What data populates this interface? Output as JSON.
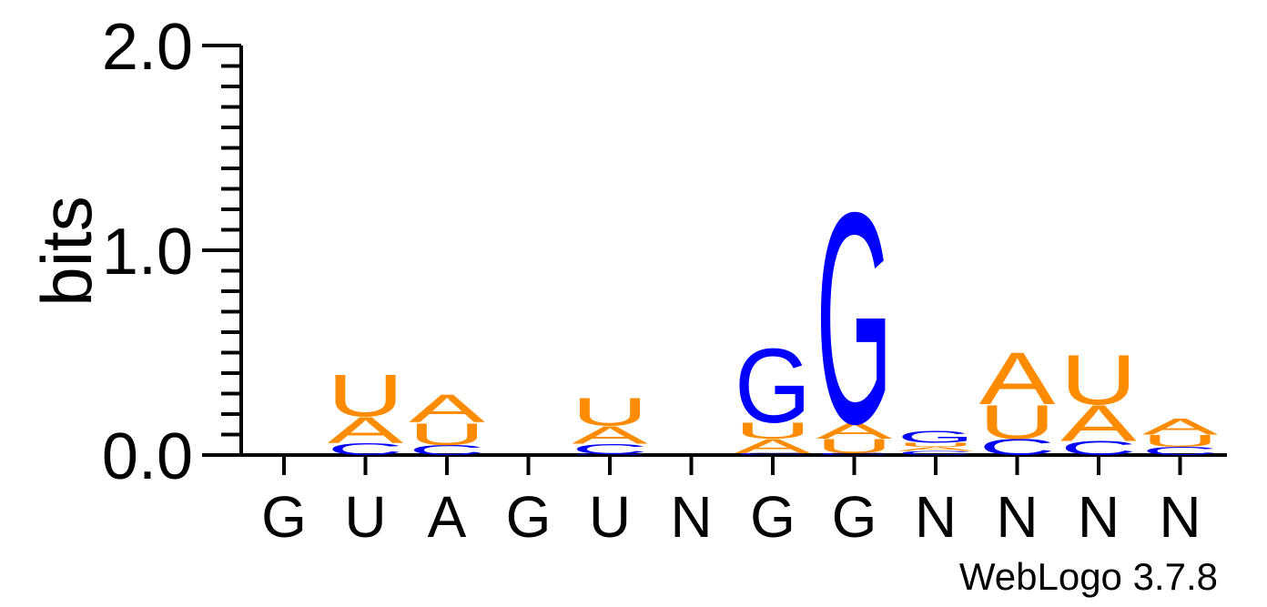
{
  "chart_data": {
    "type": "sequence-logo",
    "ylabel": "bits",
    "ylim": [
      0,
      2.0
    ],
    "y_ticks": [
      "0.0",
      "1.0",
      "2.0"
    ],
    "colors": {
      "A": "#ff8c00",
      "U": "#ff8c00",
      "G": "#0000ff",
      "C": "#0000ff"
    },
    "positions": [
      {
        "label": "G",
        "stack": []
      },
      {
        "label": "U",
        "stack": [
          {
            "letter": "C",
            "bits": 0.06
          },
          {
            "letter": "A",
            "bits": 0.13
          },
          {
            "letter": "U",
            "bits": 0.21
          }
        ]
      },
      {
        "label": "A",
        "stack": [
          {
            "letter": "C",
            "bits": 0.05
          },
          {
            "letter": "U",
            "bits": 0.11
          },
          {
            "letter": "A",
            "bits": 0.14
          }
        ]
      },
      {
        "label": "G",
        "stack": []
      },
      {
        "label": "U",
        "stack": [
          {
            "letter": "G",
            "bits": 0.005
          },
          {
            "letter": "C",
            "bits": 0.05
          },
          {
            "letter": "A",
            "bits": 0.09
          },
          {
            "letter": "U",
            "bits": 0.14
          }
        ]
      },
      {
        "label": "N",
        "stack": []
      },
      {
        "label": "G",
        "stack": [
          {
            "letter": "C",
            "bits": 0.01
          },
          {
            "letter": "A",
            "bits": 0.07
          },
          {
            "letter": "U",
            "bits": 0.08
          },
          {
            "letter": "G",
            "bits": 0.37
          }
        ]
      },
      {
        "label": "G",
        "stack": [
          {
            "letter": "C",
            "bits": 0.01
          },
          {
            "letter": "U",
            "bits": 0.07
          },
          {
            "letter": "A",
            "bits": 0.08
          },
          {
            "letter": "G",
            "bits": 1.06
          }
        ]
      },
      {
        "label": "N",
        "stack": [
          {
            "letter": "C",
            "bits": 0.02
          },
          {
            "letter": "A",
            "bits": 0.02
          },
          {
            "letter": "U",
            "bits": 0.02
          },
          {
            "letter": "G",
            "bits": 0.06
          }
        ]
      },
      {
        "label": "N",
        "stack": [
          {
            "letter": "C",
            "bits": 0.08
          },
          {
            "letter": "U",
            "bits": 0.17
          },
          {
            "letter": "A",
            "bits": 0.26
          }
        ]
      },
      {
        "label": "N",
        "stack": [
          {
            "letter": "C",
            "bits": 0.07
          },
          {
            "letter": "A",
            "bits": 0.18
          },
          {
            "letter": "U",
            "bits": 0.25
          }
        ]
      },
      {
        "label": "N",
        "stack": [
          {
            "letter": "C",
            "bits": 0.04
          },
          {
            "letter": "U",
            "bits": 0.06
          },
          {
            "letter": "A",
            "bits": 0.08
          }
        ]
      }
    ]
  },
  "credit": "WebLogo 3.7.8"
}
